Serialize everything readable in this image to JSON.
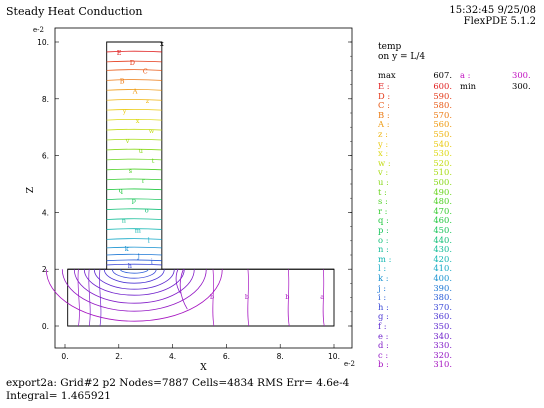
{
  "window": {
    "title": "Steady Heat Conduction",
    "timestamp": "15:32:45 9/25/08",
    "software": "FlexPDE 5.1.2"
  },
  "footer": {
    "line1": "export2a:   Grid#2  p2  Nodes=7887 Cells=4834 RMS Err= 4.6e-4",
    "line2": "Integral=   1.465921"
  },
  "chart_data": {
    "type": "contour",
    "title": "",
    "xlabel": "X",
    "ylabel": "Z",
    "x_scale_label": "e-2",
    "y_scale_label": "e-2",
    "xlim": [
      0,
      10
    ],
    "ylim": [
      0,
      10
    ],
    "x_ticks": [
      "0.",
      "2.",
      "4.",
      "6.",
      "8.",
      "10."
    ],
    "y_ticks": [
      "0.",
      "2.",
      "4.",
      "6.",
      "8.",
      "10."
    ],
    "grid": false,
    "legend_position": "right",
    "variable": "temp",
    "cut": "on y = L/4",
    "max": "607.",
    "min": "300.",
    "max_label": "max",
    "min_label": "min",
    "max_loc_label": "a :",
    "max_loc_value": "300.",
    "levels": [
      {
        "label": "E :",
        "value": "600.",
        "color": "#e02020"
      },
      {
        "label": "D :",
        "value": "590.",
        "color": "#e43a1a"
      },
      {
        "label": "C :",
        "value": "580.",
        "color": "#e85a16"
      },
      {
        "label": "B :",
        "value": "570.",
        "color": "#ec7a12"
      },
      {
        "label": "A :",
        "value": "560.",
        "color": "#ee9a10"
      },
      {
        "label": "z :",
        "value": "550.",
        "color": "#eeb410"
      },
      {
        "label": "y :",
        "value": "540.",
        "color": "#eaca12"
      },
      {
        "label": "x :",
        "value": "530.",
        "color": "#dcd814"
      },
      {
        "label": "w :",
        "value": "520.",
        "color": "#c4dc16"
      },
      {
        "label": "v :",
        "value": "510.",
        "color": "#a8dc18"
      },
      {
        "label": "u :",
        "value": "500.",
        "color": "#88d81a"
      },
      {
        "label": "t :",
        "value": "490.",
        "color": "#6ad41e"
      },
      {
        "label": "s :",
        "value": "480.",
        "color": "#4ed024"
      },
      {
        "label": "r :",
        "value": "470.",
        "color": "#36cc30"
      },
      {
        "label": "q :",
        "value": "460.",
        "color": "#22c840"
      },
      {
        "label": "p :",
        "value": "450.",
        "color": "#18c45a"
      },
      {
        "label": "o :",
        "value": "440.",
        "color": "#14c078"
      },
      {
        "label": "n :",
        "value": "430.",
        "color": "#12bc96"
      },
      {
        "label": "m :",
        "value": "420.",
        "color": "#12b6b2"
      },
      {
        "label": "l :",
        "value": "410.",
        "color": "#14a8c6"
      },
      {
        "label": "k :",
        "value": "400.",
        "color": "#1892d0"
      },
      {
        "label": "j :",
        "value": "390.",
        "color": "#1e78d6"
      },
      {
        "label": "i :",
        "value": "380.",
        "color": "#2a5ed8"
      },
      {
        "label": "h :",
        "value": "370.",
        "color": "#3a48d8"
      },
      {
        "label": "g :",
        "value": "360.",
        "color": "#4c36d4"
      },
      {
        "label": "f :",
        "value": "350.",
        "color": "#5e2ad0"
      },
      {
        "label": "e :",
        "value": "340.",
        "color": "#7022cc"
      },
      {
        "label": "d :",
        "value": "330.",
        "color": "#821cc8"
      },
      {
        "label": "c :",
        "value": "320.",
        "color": "#9418c4"
      },
      {
        "label": "b :",
        "value": "310.",
        "color": "#a614c0"
      }
    ],
    "geometry": {
      "column_x": [
        1.55,
        3.6
      ],
      "column_top": 10.0,
      "base_top": 2.0,
      "base_x": [
        0.1,
        10.0
      ]
    },
    "column_contour_z": [
      9.65,
      9.3,
      9.0,
      8.65,
      8.3,
      7.95,
      7.6,
      7.25,
      6.9,
      6.55,
      6.2,
      5.85,
      5.5,
      5.15,
      4.8,
      4.45,
      4.1,
      3.75,
      3.4,
      3.05,
      2.75,
      2.5,
      2.3,
      2.15
    ]
  }
}
